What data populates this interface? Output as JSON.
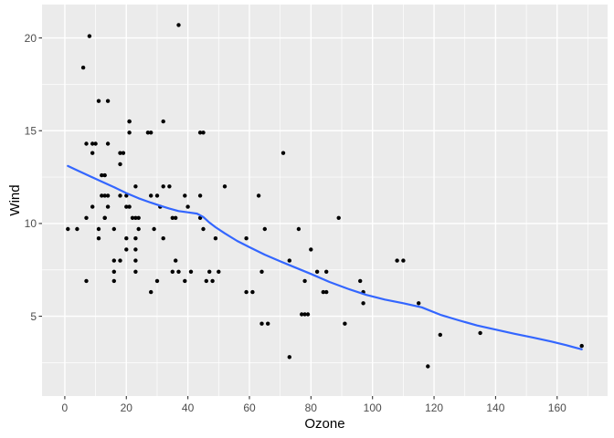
{
  "figure": {
    "background": "#FFFFFF"
  },
  "chart_data": {
    "type": "scatter",
    "title": "",
    "xlabel": "Ozone",
    "ylabel": "Wind",
    "x_ticks": [
      0,
      20,
      40,
      60,
      80,
      100,
      120,
      140,
      160
    ],
    "y_ticks": [
      5,
      10,
      15,
      20
    ],
    "x_minor_ticks": [
      10,
      30,
      50,
      70,
      90,
      110,
      130,
      150,
      170
    ],
    "y_minor_ticks": [
      2.5,
      7.5,
      12.5,
      17.5
    ],
    "xlim": [
      -7.4,
      176.4
    ],
    "ylim": [
      0.7,
      21.8
    ],
    "grid": "on",
    "legend": "none",
    "colors": {
      "panel_background": "#EBEBEB",
      "grid": "#FFFFFF",
      "points": "#000000",
      "smooth_line": "#3366FF",
      "tick_marks": "#333333",
      "tick_labels": "#4D4D4D",
      "axis_titles": "#000000"
    },
    "points": [
      [
        41,
        7.4
      ],
      [
        36,
        8.0
      ],
      [
        12,
        12.6
      ],
      [
        18,
        11.5
      ],
      [
        28,
        14.9
      ],
      [
        23,
        8.6
      ],
      [
        19,
        13.8
      ],
      [
        8,
        20.1
      ],
      [
        7,
        6.9
      ],
      [
        16,
        9.7
      ],
      [
        11,
        9.2
      ],
      [
        14,
        10.9
      ],
      [
        18,
        13.2
      ],
      [
        14,
        11.5
      ],
      [
        34,
        12.0
      ],
      [
        6,
        18.4
      ],
      [
        30,
        11.5
      ],
      [
        11,
        9.7
      ],
      [
        1,
        9.7
      ],
      [
        11,
        16.6
      ],
      [
        4,
        9.7
      ],
      [
        32,
        12.0
      ],
      [
        23,
        12.0
      ],
      [
        45,
        14.9
      ],
      [
        115,
        5.7
      ],
      [
        37,
        7.4
      ],
      [
        29,
        9.7
      ],
      [
        71,
        13.8
      ],
      [
        39,
        11.5
      ],
      [
        23,
        8.0
      ],
      [
        21,
        14.9
      ],
      [
        37,
        20.7
      ],
      [
        20,
        9.2
      ],
      [
        12,
        11.5
      ],
      [
        13,
        10.3
      ],
      [
        135,
        4.1
      ],
      [
        49,
        9.2
      ],
      [
        32,
        9.2
      ],
      [
        64,
        4.6
      ],
      [
        40,
        10.9
      ],
      [
        77,
        5.1
      ],
      [
        97,
        6.3
      ],
      [
        97,
        5.7
      ],
      [
        85,
        7.4
      ],
      [
        10,
        14.3
      ],
      [
        27,
        14.9
      ],
      [
        7,
        14.3
      ],
      [
        48,
        6.9
      ],
      [
        35,
        10.3
      ],
      [
        61,
        6.3
      ],
      [
        79,
        5.1
      ],
      [
        63,
        11.5
      ],
      [
        16,
        6.9
      ],
      [
        80,
        8.6
      ],
      [
        108,
        8.0
      ],
      [
        20,
        8.6
      ],
      [
        52,
        12.0
      ],
      [
        82,
        7.4
      ],
      [
        50,
        7.4
      ],
      [
        64,
        7.4
      ],
      [
        59,
        9.2
      ],
      [
        39,
        6.9
      ],
      [
        9,
        13.8
      ],
      [
        16,
        7.4
      ],
      [
        78,
        6.9
      ],
      [
        35,
        7.4
      ],
      [
        66,
        4.6
      ],
      [
        122,
        4.0
      ],
      [
        89,
        10.3
      ],
      [
        110,
        8.0
      ],
      [
        44,
        11.5
      ],
      [
        28,
        11.5
      ],
      [
        65,
        9.7
      ],
      [
        22,
        10.3
      ],
      [
        59,
        6.3
      ],
      [
        23,
        7.4
      ],
      [
        31,
        10.9
      ],
      [
        44,
        10.3
      ],
      [
        21,
        15.5
      ],
      [
        9,
        14.3
      ],
      [
        45,
        9.7
      ],
      [
        168,
        3.4
      ],
      [
        73,
        8.0
      ],
      [
        76,
        9.7
      ],
      [
        118,
        2.3
      ],
      [
        84,
        6.3
      ],
      [
        85,
        6.3
      ],
      [
        96,
        6.9
      ],
      [
        78,
        5.1
      ],
      [
        73,
        2.8
      ],
      [
        91,
        4.6
      ],
      [
        47,
        7.4
      ],
      [
        32,
        15.5
      ],
      [
        20,
        10.9
      ],
      [
        23,
        10.3
      ],
      [
        21,
        10.9
      ],
      [
        24,
        9.7
      ],
      [
        44,
        14.9
      ],
      [
        21,
        15.5
      ],
      [
        28,
        6.3
      ],
      [
        9,
        10.9
      ],
      [
        13,
        11.5
      ],
      [
        46,
        6.9
      ],
      [
        18,
        13.8
      ],
      [
        13,
        10.3
      ],
      [
        24,
        10.3
      ],
      [
        16,
        8.0
      ],
      [
        13,
        12.6
      ],
      [
        23,
        9.2
      ],
      [
        36,
        10.3
      ],
      [
        7,
        10.3
      ],
      [
        14,
        16.6
      ],
      [
        30,
        6.9
      ],
      [
        14,
        14.3
      ],
      [
        18,
        8.0
      ],
      [
        20,
        11.5
      ]
    ],
    "smooth_line": [
      [
        1,
        13.1
      ],
      [
        4,
        12.87
      ],
      [
        8,
        12.56
      ],
      [
        12,
        12.26
      ],
      [
        16,
        11.96
      ],
      [
        20,
        11.64
      ],
      [
        24,
        11.36
      ],
      [
        28,
        11.12
      ],
      [
        31,
        10.96
      ],
      [
        34,
        10.8
      ],
      [
        37,
        10.67
      ],
      [
        40,
        10.6
      ],
      [
        43,
        10.53
      ],
      [
        45,
        10.35
      ],
      [
        47,
        10.05
      ],
      [
        49,
        9.8
      ],
      [
        52,
        9.47
      ],
      [
        56,
        9.06
      ],
      [
        60,
        8.72
      ],
      [
        65,
        8.32
      ],
      [
        70,
        7.96
      ],
      [
        75,
        7.62
      ],
      [
        80,
        7.28
      ],
      [
        86,
        6.85
      ],
      [
        92,
        6.48
      ],
      [
        98,
        6.15
      ],
      [
        104,
        5.9
      ],
      [
        110,
        5.7
      ],
      [
        116,
        5.48
      ],
      [
        122,
        5.08
      ],
      [
        128,
        4.78
      ],
      [
        134,
        4.5
      ],
      [
        140,
        4.28
      ],
      [
        146,
        4.06
      ],
      [
        152,
        3.86
      ],
      [
        158,
        3.64
      ],
      [
        163,
        3.44
      ],
      [
        166,
        3.3
      ],
      [
        168,
        3.22
      ]
    ]
  }
}
